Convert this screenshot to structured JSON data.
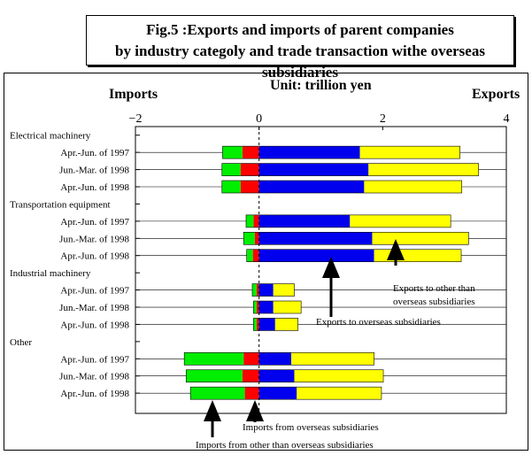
{
  "title_lines": [
    "Fig.5 :Exports and imports of parent companies",
    "by industry categoly and trade transaction withe overseas subsidiaries"
  ],
  "unit": "Unit: trillion yen",
  "left_header": "Imports",
  "right_header": "Exports",
  "annotations": {
    "exports_other": [
      "Exports to other than",
      "overseas subsidiaries"
    ],
    "exports_overseas": "Exports to overseas subsidiaries",
    "imports_overseas": "Imports from overseas subsidiaries",
    "imports_other": "Imports from other than overseas subsidiaries"
  },
  "chart_data": {
    "type": "bar",
    "orientation": "horizontal",
    "stacked": true,
    "xlim": [
      -2,
      4
    ],
    "x_ticks": [
      "−2",
      "0",
      "2",
      "4"
    ],
    "colors": {
      "imports_other": "#00ee00",
      "imports_overseas": "#ff0000",
      "exports_overseas": "#0000ee",
      "exports_other": "#ffff00"
    },
    "groups": [
      {
        "name": "Electrical machinery",
        "rows": [
          {
            "label": "Apr.-Jun. of 1997",
            "imports_other": 0.32,
            "imports_overseas": 0.27,
            "exports_overseas": 1.63,
            "exports_other": 1.62
          },
          {
            "label": "Jun.-Mar. of 1998",
            "imports_other": 0.3,
            "imports_overseas": 0.3,
            "exports_overseas": 1.77,
            "exports_other": 1.78
          },
          {
            "label": "Apr.-Jun. of 1998",
            "imports_other": 0.3,
            "imports_overseas": 0.3,
            "exports_overseas": 1.7,
            "exports_other": 1.58
          }
        ]
      },
      {
        "name": "Transportation equipment",
        "rows": [
          {
            "label": "Apr.-Jun. of 1997",
            "imports_other": 0.12,
            "imports_overseas": 0.09,
            "exports_overseas": 1.47,
            "exports_other": 1.63
          },
          {
            "label": "Jun.-Mar. of 1998",
            "imports_other": 0.18,
            "imports_overseas": 0.07,
            "exports_overseas": 1.83,
            "exports_other": 1.56
          },
          {
            "label": "Apr.-Jun. of 1998",
            "imports_other": 0.1,
            "imports_overseas": 0.1,
            "exports_overseas": 1.86,
            "exports_other": 1.41
          }
        ]
      },
      {
        "name": "Industrial machinery",
        "rows": [
          {
            "label": "Apr.-Jun. of 1997",
            "imports_other": 0.07,
            "imports_overseas": 0.04,
            "exports_overseas": 0.23,
            "exports_other": 0.34
          },
          {
            "label": "Jun.-Mar. of 1998",
            "imports_other": 0.05,
            "imports_overseas": 0.04,
            "exports_overseas": 0.23,
            "exports_other": 0.45
          },
          {
            "label": "Apr.-Jun. of 1998",
            "imports_other": 0.05,
            "imports_overseas": 0.04,
            "exports_overseas": 0.26,
            "exports_other": 0.37
          }
        ]
      },
      {
        "name": "Other",
        "rows": [
          {
            "label": "Apr.-Jun. of 1997",
            "imports_other": 0.96,
            "imports_overseas": 0.25,
            "exports_overseas": 0.52,
            "exports_other": 1.34
          },
          {
            "label": "Jun.-Mar. of 1998",
            "imports_other": 0.91,
            "imports_overseas": 0.27,
            "exports_overseas": 0.57,
            "exports_other": 1.44
          },
          {
            "label": "Apr.-Jun. of 1998",
            "imports_other": 0.88,
            "imports_overseas": 0.23,
            "exports_overseas": 0.61,
            "exports_other": 1.37
          }
        ]
      }
    ]
  }
}
